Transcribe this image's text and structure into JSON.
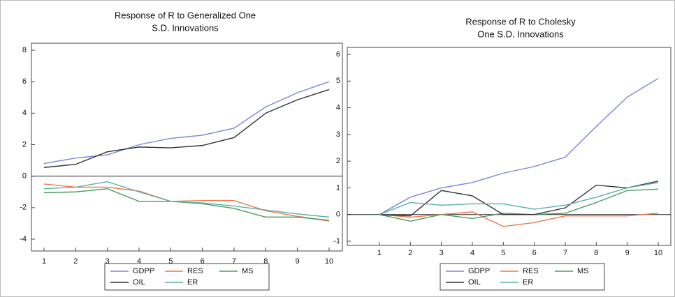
{
  "chart_data": [
    {
      "type": "line",
      "title": [
        "Response of R to Generalized One",
        "S.D. Innovations"
      ],
      "categories": [
        "1",
        "2",
        "3",
        "4",
        "5",
        "6",
        "7",
        "8",
        "9",
        "10"
      ],
      "ylim": [
        -4,
        8
      ],
      "yticks": [
        -4,
        -2,
        0,
        2,
        4,
        6,
        8
      ],
      "series": [
        {
          "name": "GDPP",
          "color": "#7b86d8",
          "values": [
            0.8,
            1.15,
            1.35,
            2.0,
            2.4,
            2.6,
            3.05,
            4.4,
            5.3,
            6.0
          ]
        },
        {
          "name": "RES",
          "color": "#f07848",
          "values": [
            -0.5,
            -0.7,
            -0.7,
            -0.95,
            -1.6,
            -1.55,
            -1.55,
            -2.2,
            -2.55,
            -2.85
          ]
        },
        {
          "name": "MS",
          "color": "#4a9e5e",
          "values": [
            -1.05,
            -1.0,
            -0.8,
            -1.6,
            -1.6,
            -1.75,
            -2.05,
            -2.6,
            -2.6,
            -2.8
          ]
        },
        {
          "name": "OIL",
          "color": "#333333",
          "values": [
            0.55,
            0.75,
            1.55,
            1.85,
            1.8,
            1.95,
            2.45,
            4.0,
            4.85,
            5.5
          ]
        },
        {
          "name": "ER",
          "color": "#5ab0aa",
          "values": [
            -0.8,
            -0.7,
            -0.35,
            -1.0,
            -1.6,
            -1.7,
            -1.9,
            -2.15,
            -2.4,
            -2.6
          ]
        }
      ]
    },
    {
      "type": "line",
      "title": [
        "Response of R to Cholesky",
        "One S.D. Innovations"
      ],
      "categories": [
        "1",
        "2",
        "3",
        "4",
        "5",
        "6",
        "7",
        "8",
        "9",
        "10"
      ],
      "ylim": [
        -1,
        6
      ],
      "yticks": [
        -1,
        0,
        1,
        2,
        3,
        4,
        5,
        6
      ],
      "series": [
        {
          "name": "GDPP",
          "color": "#7b86d8",
          "values": [
            0,
            0.65,
            1.0,
            1.2,
            1.55,
            1.8,
            2.15,
            3.3,
            4.4,
            5.1
          ]
        },
        {
          "name": "RES",
          "color": "#f07848",
          "values": [
            0,
            -0.1,
            0.0,
            0.1,
            -0.45,
            -0.3,
            -0.05,
            -0.05,
            -0.05,
            0.05
          ]
        },
        {
          "name": "MS",
          "color": "#4a9e5e",
          "values": [
            0,
            -0.25,
            0.0,
            -0.15,
            0.05,
            0.0,
            0.05,
            0.45,
            0.9,
            0.95
          ]
        },
        {
          "name": "OIL",
          "color": "#333333",
          "values": [
            0,
            -0.05,
            0.9,
            0.7,
            0.0,
            0.0,
            0.25,
            1.1,
            1.0,
            1.25
          ]
        },
        {
          "name": "ER",
          "color": "#5ab0aa",
          "values": [
            0,
            0.45,
            0.35,
            0.4,
            0.4,
            0.2,
            0.35,
            0.65,
            1.0,
            1.2
          ]
        }
      ]
    }
  ]
}
